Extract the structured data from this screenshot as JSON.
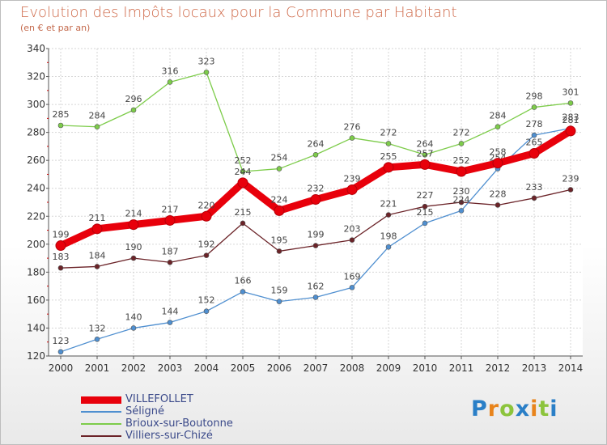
{
  "header": {
    "title": "Evolution des Impôts locaux pour la Commune par Habitant",
    "subtitle": "(en € et par an)"
  },
  "logo": {
    "letters": [
      "P",
      "r",
      "o",
      "x",
      "i",
      "t",
      "i"
    ],
    "colors": [
      "#2a7fc7",
      "#e8841c",
      "#8cc43c",
      "#2a7fc7",
      "#e8841c",
      "#8cc43c",
      "#2a7fc7"
    ]
  },
  "chart_data": {
    "type": "line",
    "title": "Evolution des Impôts locaux pour la Commune par Habitant",
    "subtitle": "(en € et par an)",
    "xlabel": "",
    "ylabel": "",
    "categories": [
      "2000",
      "2001",
      "2002",
      "2003",
      "2004",
      "2005",
      "2006",
      "2007",
      "2008",
      "2009",
      "2010",
      "2011",
      "2012",
      "2013",
      "2014"
    ],
    "ylim": [
      120,
      340
    ],
    "yticks": [
      120,
      140,
      160,
      180,
      200,
      220,
      240,
      260,
      280,
      300,
      320,
      340
    ],
    "grid": true,
    "legend": "bottom-left",
    "series": [
      {
        "name": "VILLEFOLLET",
        "color": "#e8000b",
        "values": [
          199,
          211,
          214,
          217,
          220,
          244,
          224,
          232,
          239,
          255,
          257,
          252,
          258,
          265,
          281
        ]
      },
      {
        "name": "Séligné",
        "color": "#4f8fd0",
        "values": [
          123,
          132,
          140,
          144,
          152,
          166,
          159,
          162,
          169,
          198,
          215,
          224,
          254,
          278,
          283
        ]
      },
      {
        "name": "Brioux-sur-Boutonne",
        "color": "#7dcc4a",
        "values": [
          285,
          284,
          296,
          316,
          323,
          252,
          254,
          264,
          276,
          272,
          264,
          272,
          284,
          298,
          301
        ]
      },
      {
        "name": "Villiers-sur-Chizé",
        "color": "#6b2328",
        "values": [
          183,
          184,
          190,
          187,
          192,
          215,
          195,
          199,
          203,
          221,
          227,
          230,
          228,
          233,
          239
        ]
      }
    ]
  }
}
